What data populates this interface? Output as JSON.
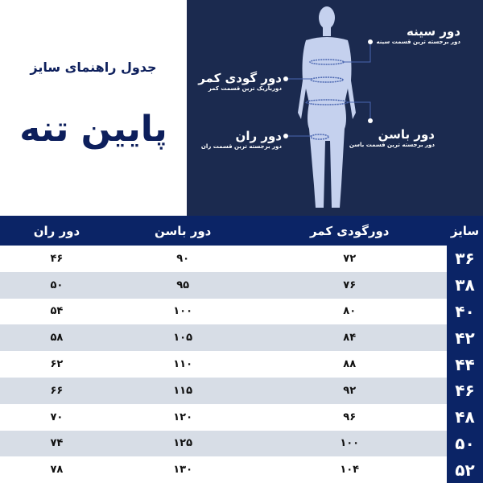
{
  "title": {
    "subtitle": "جدول راهنمای سایز",
    "main": "پایین تنه"
  },
  "figure": {
    "chest": {
      "title": "دور سینه",
      "desc": "دور برجسته ترین قسمت سینه"
    },
    "waist": {
      "title": "دور گودی کمر",
      "desc": "دورباریک ترین قسمت کمر"
    },
    "hip": {
      "title": "دور باسن",
      "desc": "دور برجسته ترین قسمت باسن"
    },
    "thigh": {
      "title": "دور ران",
      "desc": "دور برجسته ترین قسمت ران"
    }
  },
  "table": {
    "headers": [
      "سایز",
      "دورگودی کمر",
      "دور باسن",
      "دور ران"
    ],
    "rows": [
      [
        "۳۶",
        "۷۲",
        "۹۰",
        "۴۶"
      ],
      [
        "۳۸",
        "۷۶",
        "۹۵",
        "۵۰"
      ],
      [
        "۴۰",
        "۸۰",
        "۱۰۰",
        "۵۴"
      ],
      [
        "۴۲",
        "۸۴",
        "۱۰۵",
        "۵۸"
      ],
      [
        "۴۴",
        "۸۸",
        "۱۱۰",
        "۶۲"
      ],
      [
        "۴۶",
        "۹۲",
        "۱۱۵",
        "۶۶"
      ],
      [
        "۴۸",
        "۹۶",
        "۱۲۰",
        "۷۰"
      ],
      [
        "۵۰",
        "۱۰۰",
        "۱۲۵",
        "۷۴"
      ],
      [
        "۵۲",
        "۱۰۴",
        "۱۳۰",
        "۷۸"
      ]
    ]
  },
  "colors": {
    "navy": "#0b2466",
    "panel": "#1b2a4f",
    "alt_row": "#d7dde6",
    "figure": "#c5d1ee"
  }
}
